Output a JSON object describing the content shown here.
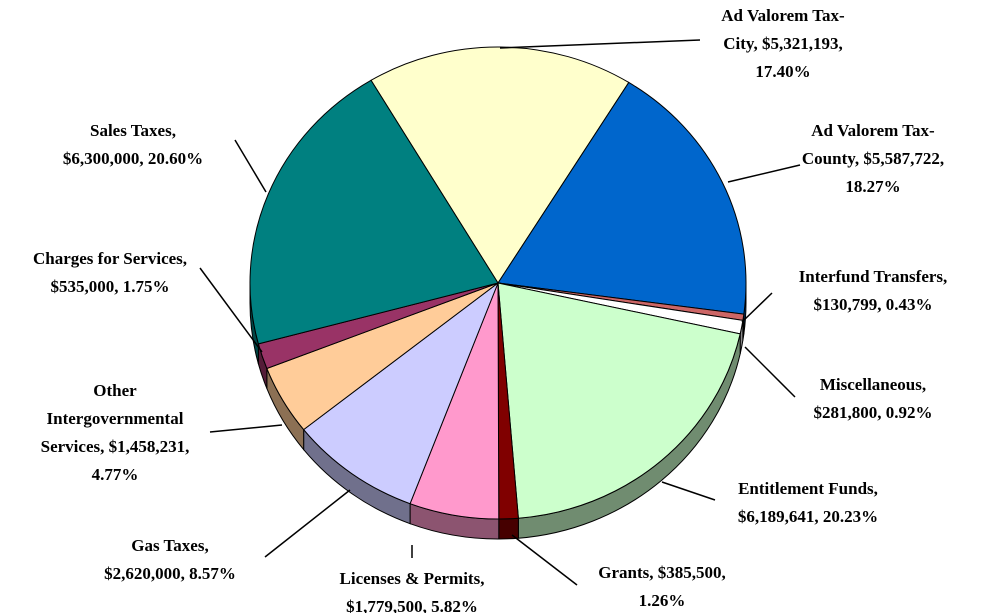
{
  "chart_data": {
    "type": "pie",
    "labels": [
      [
        "Ad Valorem Tax-",
        "City, $5,321,193,",
        "17.40%"
      ],
      [
        "Ad Valorem Tax-",
        "County, $5,587,722,",
        "18.27%"
      ],
      [
        "Interfund Transfers,",
        "$130,799, 0.43%"
      ],
      [
        "Miscellaneous,",
        "$281,800, 0.92%"
      ],
      [
        "Entitlement Funds,",
        "$6,189,641, 20.23%"
      ],
      [
        "Grants, $385,500,",
        "1.26%"
      ],
      [
        "Licenses & Permits,",
        "$1,779,500, 5.82%"
      ],
      [
        "Gas Taxes,",
        "$2,620,000, 8.57%"
      ],
      [
        "Other",
        "Intergovernmental",
        "Services, $1,458,231,",
        "4.77%"
      ],
      [
        "Charges for Services,",
        "$535,000, 1.75%"
      ],
      [
        "Sales Taxes,",
        "$6,300,000, 20.60%"
      ]
    ],
    "values": [
      5321193,
      5587722,
      130799,
      281800,
      6189641,
      385500,
      1779500,
      2620000,
      1458231,
      535000,
      6300000
    ],
    "colors": [
      "#ffffcc",
      "#0066cc",
      "#cc6666",
      "#ffffff",
      "#ccffcc",
      "#800000",
      "#ff99cc",
      "#ccccff",
      "#ffcc99",
      "#993366",
      "#008080"
    ]
  }
}
